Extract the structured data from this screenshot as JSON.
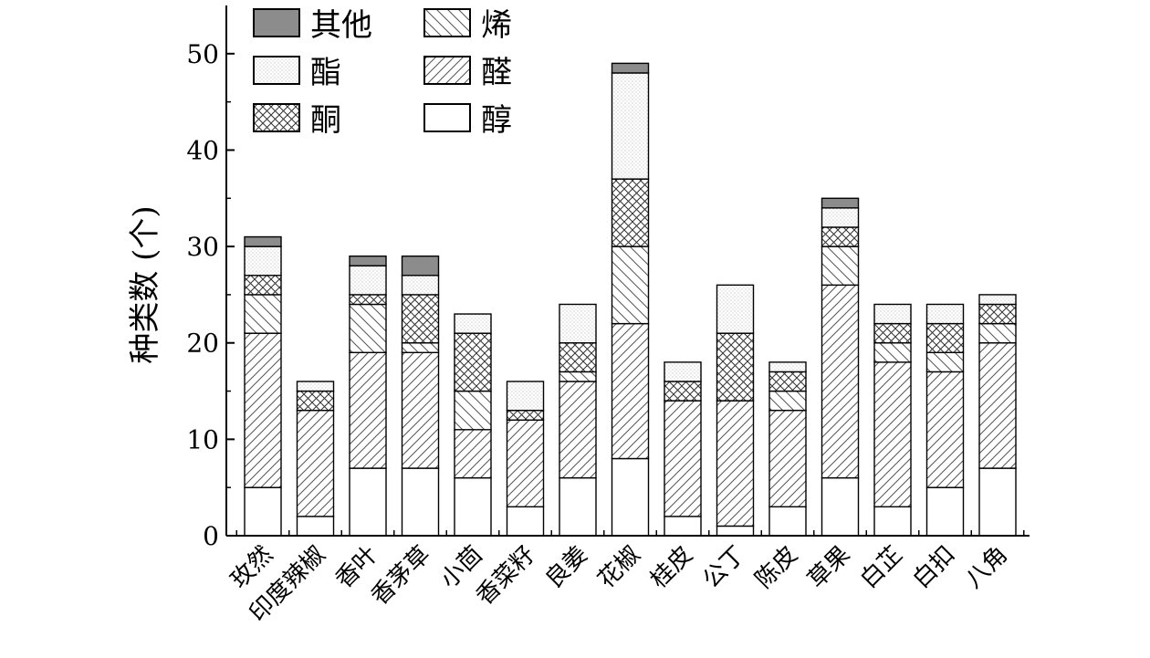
{
  "chart_data": {
    "type": "bar",
    "stacked": true,
    "title": "",
    "xlabel": "",
    "ylabel": "种类数 (个)",
    "ylim": [
      0,
      55
    ],
    "yticks": [
      0,
      10,
      20,
      30,
      40,
      50
    ],
    "grid": false,
    "legend_position": "top-left",
    "categories": [
      "玫然",
      "印度辣椒",
      "香叶",
      "香茅草",
      "小茴",
      "香菜籽",
      "良姜",
      "花椒",
      "桂皮",
      "公丁",
      "陈皮",
      "草果",
      "白芷",
      "白扣",
      "八角"
    ],
    "series": [
      {
        "name": "醇",
        "pattern": "plain",
        "values": [
          5,
          2,
          7,
          7,
          6,
          3,
          6,
          8,
          2,
          1,
          3,
          6,
          3,
          5,
          7
        ]
      },
      {
        "name": "醛",
        "pattern": "diag-fwd",
        "values": [
          16,
          11,
          12,
          12,
          5,
          9,
          10,
          14,
          12,
          13,
          10,
          20,
          15,
          12,
          13
        ]
      },
      {
        "name": "烯",
        "pattern": "diag-back",
        "values": [
          4,
          0,
          5,
          1,
          4,
          0,
          1,
          8,
          0,
          0,
          2,
          4,
          2,
          2,
          2
        ]
      },
      {
        "name": "酮",
        "pattern": "crosshatch",
        "values": [
          2,
          2,
          1,
          5,
          6,
          1,
          3,
          7,
          2,
          7,
          2,
          2,
          2,
          3,
          2
        ]
      },
      {
        "name": "酯",
        "pattern": "dots",
        "values": [
          3,
          1,
          3,
          2,
          2,
          3,
          4,
          11,
          2,
          5,
          1,
          2,
          2,
          2,
          1
        ]
      },
      {
        "name": "其他",
        "pattern": "gray",
        "values": [
          1,
          0,
          1,
          2,
          0,
          0,
          0,
          1,
          0,
          0,
          0,
          1,
          0,
          0,
          0
        ]
      }
    ],
    "legend_order": [
      "其他",
      "烯",
      "酯",
      "醛",
      "酮",
      "醇"
    ]
  },
  "colors": {
    "axis": "#000000",
    "bar_fill": "#ffffff",
    "other_fill": "#8c8c8c",
    "hatch_stroke": "#555555",
    "dot_fill": "#b5b5b5"
  }
}
